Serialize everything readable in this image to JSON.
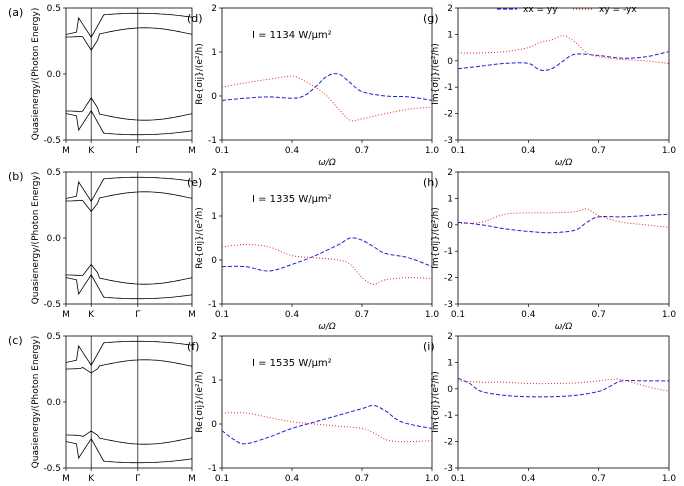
{
  "chart_data": {
    "type": "line",
    "legend": {
      "position": "top-right",
      "entries": [
        {
          "label": "xx = yy",
          "color": "#1f1fd6",
          "style": "dashed"
        },
        {
          "label": "xy = -yx",
          "color": "#e8251b",
          "style": "dotted"
        }
      ]
    },
    "band_panels": [
      {
        "id": "a",
        "label": "(a)",
        "ylabel": "Quasienergy/(Photon Energy)",
        "ylim": [
          -0.5,
          0.5
        ],
        "yticks": [
          "-0.5",
          "0.0",
          "0.5"
        ],
        "xticks": [
          "M",
          "K",
          "Γ",
          "M"
        ],
        "pinch": 0.18,
        "outer": 0.3
      },
      {
        "id": "b",
        "label": "(b)",
        "ylabel": "Quasienergy/(Photon Energy)",
        "ylim": [
          -0.5,
          0.5
        ],
        "yticks": [
          "-0.5",
          "0.0",
          "0.5"
        ],
        "xticks": [
          "M",
          "K",
          "Γ",
          "M"
        ],
        "pinch": 0.2,
        "outer": 0.3
      },
      {
        "id": "c",
        "label": "(c)",
        "ylabel": "Quasienergy/(Photon Energy)",
        "ylim": [
          -0.5,
          0.5
        ],
        "yticks": [
          "-0.5",
          "0.0",
          "0.5"
        ],
        "xticks": [
          "M",
          "K",
          "Γ",
          "M"
        ],
        "pinch": 0.22,
        "outer": 0.27
      }
    ],
    "cond_panels": [
      {
        "id": "d",
        "label": "(d)",
        "part": "Re",
        "ylabel": "Re{σij}/(e²/h)",
        "xlabel": "ω/Ω",
        "xlim": [
          0.1,
          1.0
        ],
        "ylim": [
          -1,
          2
        ],
        "xticks": [
          "0.1",
          "0.4",
          "0.7",
          "1.0"
        ],
        "yticks": [
          "-1",
          "0",
          "1",
          "2"
        ],
        "annotation": "I = 1134 W/μm²",
        "series": [
          {
            "name": "xx = yy",
            "x": [
              0.1,
              0.2,
              0.3,
              0.4,
              0.45,
              0.5,
              0.55,
              0.6,
              0.65,
              0.7,
              0.8,
              0.9,
              1.0
            ],
            "y": [
              -0.1,
              -0.05,
              -0.02,
              -0.05,
              0.0,
              0.2,
              0.45,
              0.5,
              0.3,
              0.1,
              0.0,
              -0.02,
              -0.1
            ]
          },
          {
            "name": "xy = -yx",
            "x": [
              0.1,
              0.2,
              0.3,
              0.4,
              0.45,
              0.5,
              0.55,
              0.6,
              0.65,
              0.7,
              0.8,
              0.9,
              1.0
            ],
            "y": [
              0.2,
              0.3,
              0.38,
              0.45,
              0.35,
              0.2,
              0.0,
              -0.3,
              -0.55,
              -0.52,
              -0.4,
              -0.3,
              -0.25
            ]
          }
        ]
      },
      {
        "id": "e",
        "label": "(e)",
        "part": "Re",
        "ylabel": "Re{σij}/(e²/h)",
        "xlabel": "ω/Ω",
        "xlim": [
          0.1,
          1.0
        ],
        "ylim": [
          -1,
          2
        ],
        "xticks": [
          "0.1",
          "0.4",
          "0.7",
          "1.0"
        ],
        "yticks": [
          "-1",
          "0",
          "1",
          "2"
        ],
        "annotation": "I = 1335 W/μm²",
        "series": [
          {
            "name": "xx = yy",
            "x": [
              0.1,
              0.2,
              0.3,
              0.4,
              0.5,
              0.6,
              0.65,
              0.7,
              0.75,
              0.8,
              0.9,
              1.0
            ],
            "y": [
              -0.15,
              -0.15,
              -0.25,
              -0.1,
              0.1,
              0.35,
              0.5,
              0.45,
              0.3,
              0.15,
              0.05,
              -0.15
            ]
          },
          {
            "name": "xy = -yx",
            "x": [
              0.1,
              0.2,
              0.3,
              0.4,
              0.5,
              0.6,
              0.65,
              0.7,
              0.75,
              0.8,
              0.9,
              1.0
            ],
            "y": [
              0.3,
              0.35,
              0.3,
              0.1,
              0.05,
              0.0,
              -0.1,
              -0.4,
              -0.55,
              -0.45,
              -0.4,
              -0.42
            ]
          }
        ]
      },
      {
        "id": "f",
        "label": "(f)",
        "part": "Re",
        "ylabel": "Re{σij}/(e²/h)",
        "xlabel": "ω/Ω",
        "xlim": [
          0.1,
          1.0
        ],
        "ylim": [
          -1,
          2
        ],
        "xticks": [
          "0.1",
          "0.4",
          "0.7",
          "1.0"
        ],
        "yticks": [
          "-1",
          "0",
          "1",
          "2"
        ],
        "annotation": "I = 1535 W/μm²",
        "series": [
          {
            "name": "xx = yy",
            "x": [
              0.1,
              0.15,
              0.2,
              0.3,
              0.4,
              0.5,
              0.6,
              0.7,
              0.75,
              0.8,
              0.85,
              0.9,
              1.0
            ],
            "y": [
              -0.15,
              -0.35,
              -0.45,
              -0.3,
              -0.1,
              0.05,
              0.2,
              0.35,
              0.42,
              0.3,
              0.1,
              0.0,
              -0.1
            ]
          },
          {
            "name": "xy = -yx",
            "x": [
              0.1,
              0.2,
              0.3,
              0.4,
              0.5,
              0.6,
              0.7,
              0.75,
              0.8,
              0.85,
              0.9,
              1.0
            ],
            "y": [
              0.25,
              0.25,
              0.15,
              0.05,
              0.0,
              -0.05,
              -0.1,
              -0.2,
              -0.35,
              -0.4,
              -0.4,
              -0.38
            ]
          }
        ]
      },
      {
        "id": "g",
        "label": "(g)",
        "part": "Im",
        "ylabel": "Im{σij}/(e²/h)",
        "xlabel": "ω/Ω",
        "xlim": [
          0.1,
          1.0
        ],
        "ylim": [
          -3,
          2
        ],
        "xticks": [
          "0.1",
          "0.4",
          "0.7",
          "1.0"
        ],
        "yticks": [
          "-3",
          "-2",
          "-1",
          "0",
          "1",
          "2"
        ],
        "annotation": "",
        "series": [
          {
            "name": "xx = yy",
            "x": [
              0.1,
              0.2,
              0.3,
              0.4,
              0.45,
              0.5,
              0.55,
              0.6,
              0.7,
              0.8,
              0.9,
              1.0
            ],
            "y": [
              -0.3,
              -0.2,
              -0.1,
              -0.1,
              -0.35,
              -0.3,
              0.0,
              0.25,
              0.2,
              0.1,
              0.15,
              0.35
            ]
          },
          {
            "name": "xy = -yx",
            "x": [
              0.1,
              0.2,
              0.3,
              0.4,
              0.45,
              0.5,
              0.55,
              0.6,
              0.65,
              0.7,
              0.8,
              0.9,
              1.0
            ],
            "y": [
              0.3,
              0.3,
              0.35,
              0.5,
              0.7,
              0.8,
              0.95,
              0.7,
              0.3,
              0.15,
              0.05,
              0.0,
              -0.1
            ]
          }
        ]
      },
      {
        "id": "h",
        "label": "(h)",
        "part": "Im",
        "ylabel": "Im{σij}/(e²/h)",
        "xlabel": "ω/Ω",
        "xlim": [
          0.1,
          1.0
        ],
        "ylim": [
          -3,
          2
        ],
        "xticks": [
          "0.1",
          "0.4",
          "0.7",
          "1.0"
        ],
        "yticks": [
          "-3",
          "-2",
          "-1",
          "0",
          "1",
          "2"
        ],
        "annotation": "",
        "series": [
          {
            "name": "xx = yy",
            "x": [
              0.1,
              0.2,
              0.3,
              0.4,
              0.5,
              0.6,
              0.65,
              0.7,
              0.8,
              0.9,
              1.0
            ],
            "y": [
              0.1,
              0.0,
              -0.15,
              -0.25,
              -0.3,
              -0.2,
              0.1,
              0.3,
              0.3,
              0.35,
              0.4
            ]
          },
          {
            "name": "xy = -yx",
            "x": [
              0.1,
              0.2,
              0.3,
              0.4,
              0.5,
              0.6,
              0.65,
              0.7,
              0.8,
              0.9,
              1.0
            ],
            "y": [
              0.05,
              0.1,
              0.4,
              0.45,
              0.45,
              0.5,
              0.6,
              0.35,
              0.1,
              0.0,
              -0.1
            ]
          }
        ]
      },
      {
        "id": "i",
        "label": "(i)",
        "part": "Im",
        "ylabel": "Im{σij}/(e²/h)",
        "xlabel": "ω/Ω",
        "xlim": [
          0.1,
          1.0
        ],
        "ylim": [
          -3,
          2
        ],
        "xticks": [
          "0.1",
          "0.4",
          "0.7",
          "1.0"
        ],
        "yticks": [
          "-3",
          "-2",
          "-1",
          "0",
          "1",
          "2"
        ],
        "annotation": "",
        "series": [
          {
            "name": "xx = yy",
            "x": [
              0.1,
              0.15,
              0.2,
              0.3,
              0.4,
              0.5,
              0.6,
              0.7,
              0.75,
              0.8,
              0.9,
              1.0
            ],
            "y": [
              0.4,
              0.2,
              -0.1,
              -0.25,
              -0.3,
              -0.3,
              -0.25,
              -0.1,
              0.1,
              0.3,
              0.3,
              0.3
            ]
          },
          {
            "name": "xy = -yx",
            "x": [
              0.1,
              0.2,
              0.3,
              0.4,
              0.5,
              0.6,
              0.7,
              0.75,
              0.8,
              0.9,
              1.0
            ],
            "y": [
              0.3,
              0.25,
              0.25,
              0.2,
              0.2,
              0.22,
              0.3,
              0.35,
              0.35,
              0.1,
              -0.1
            ]
          }
        ]
      }
    ]
  }
}
